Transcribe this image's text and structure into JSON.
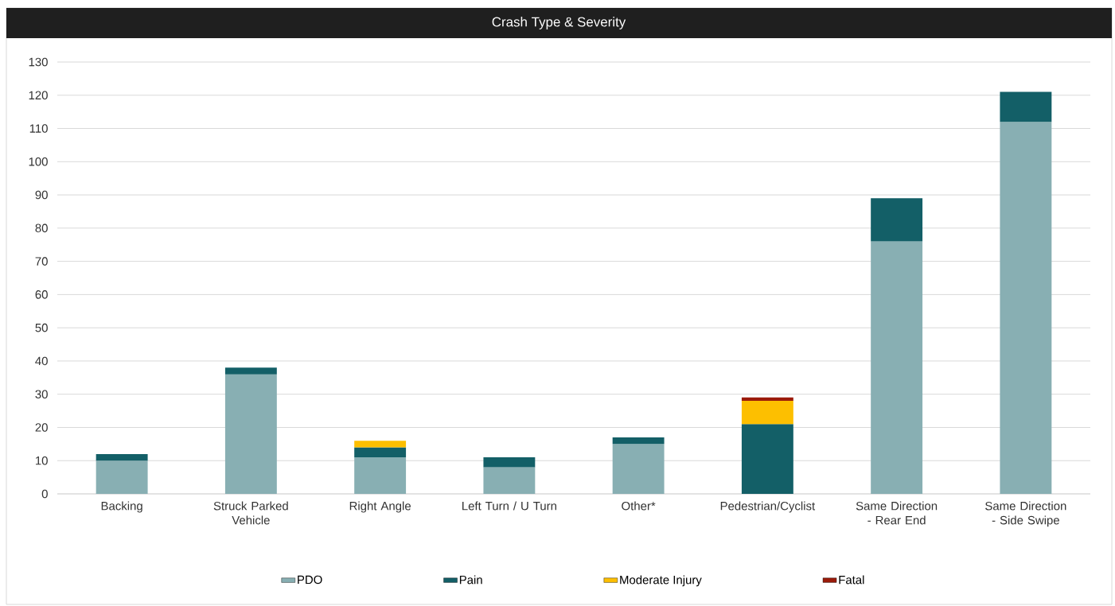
{
  "chart_data": {
    "type": "bar",
    "stacked": true,
    "title": "Crash Type & Severity",
    "categories": [
      "Backing",
      "Struck Parked Vehicle",
      "Right Angle",
      "Left Turn / U Turn",
      "Other*",
      "Pedestrian/Cyclist",
      "Same Direction - Rear End",
      "Same Direction - Side Swipe"
    ],
    "series": [
      {
        "name": "PDO",
        "color": "#88afb3",
        "values": [
          10,
          36,
          11,
          8,
          15,
          null,
          76,
          112
        ]
      },
      {
        "name": "Pain",
        "color": "#135f67",
        "values": [
          2,
          2,
          3,
          3,
          2,
          21,
          13,
          9
        ]
      },
      {
        "name": "Moderate Injury",
        "color": "#fdbf00",
        "values": [
          null,
          null,
          2,
          null,
          null,
          7,
          null,
          null
        ]
      },
      {
        "name": "Fatal",
        "color": "#9b1b0a",
        "values": [
          null,
          null,
          null,
          null,
          null,
          1,
          null,
          null
        ]
      }
    ],
    "ylim": [
      0,
      130
    ],
    "yticks": [
      0,
      10,
      20,
      30,
      40,
      50,
      60,
      70,
      80,
      90,
      100,
      110,
      120,
      130
    ],
    "grid": "y",
    "legend": "bottom"
  }
}
